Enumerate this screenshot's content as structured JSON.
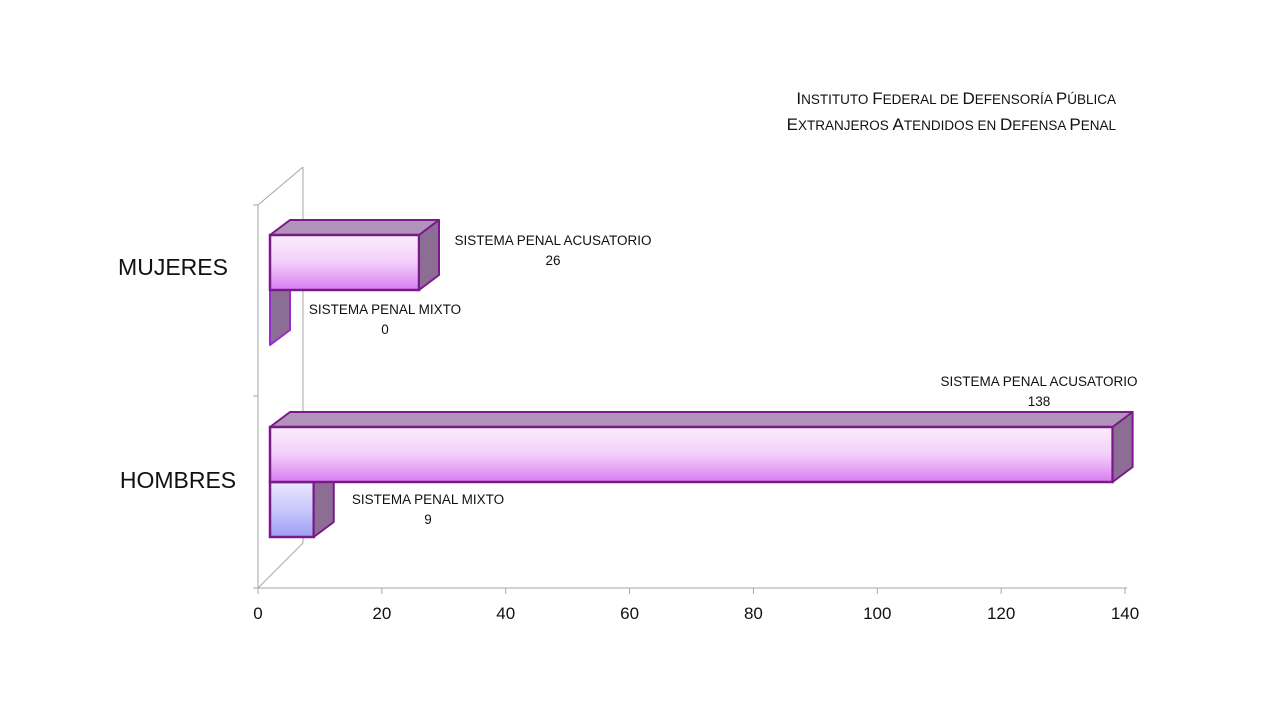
{
  "chart_data": {
    "type": "bar",
    "orientation": "horizontal",
    "title": [
      "Instituto Federal de Defensoría Pública",
      "Extranjeros  Atendidos en Defensa Penal"
    ],
    "categories": [
      "MUJERES",
      "HOMBRES"
    ],
    "series": [
      {
        "name": "SISTEMA PENAL ACUSATORIO",
        "values": [
          26,
          138
        ],
        "color": "#e8b4f4"
      },
      {
        "name": "SISTEMA PENAL MIXTO",
        "values": [
          0,
          9
        ],
        "color": "#b6b4f6"
      }
    ],
    "xlim": [
      0,
      140
    ],
    "xticks": [
      "0",
      "20",
      "40",
      "60",
      "80",
      "100",
      "120",
      "140"
    ],
    "grid": false,
    "legend": "none",
    "border_color": "#7a1a8a",
    "data_labels": true,
    "style": "3d-bar"
  }
}
